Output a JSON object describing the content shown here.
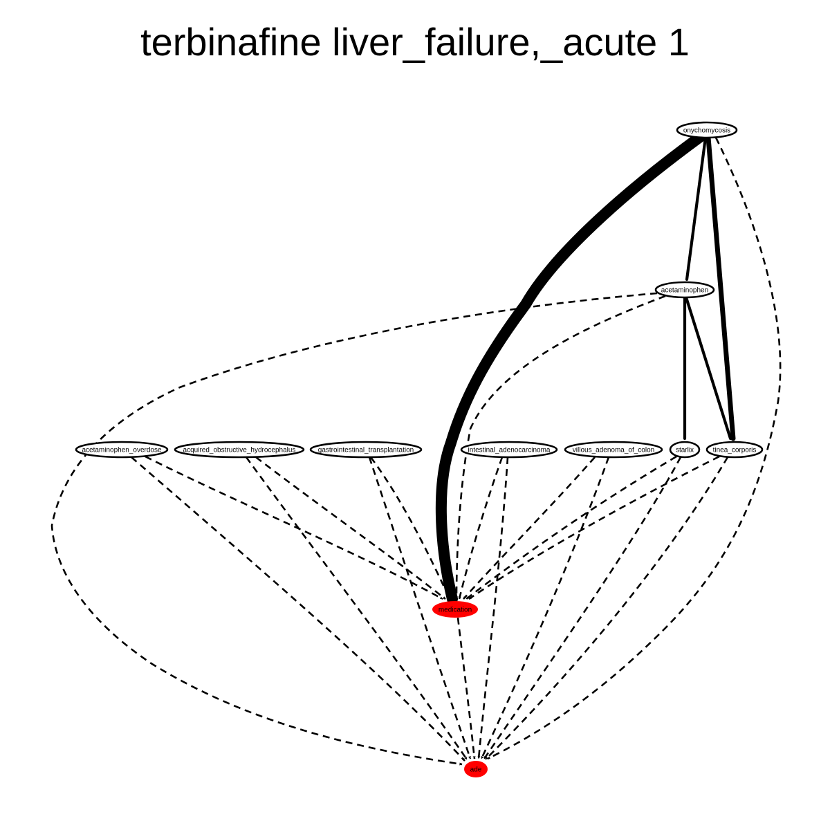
{
  "title": "terbinafine liver_failure,_acute 1",
  "nodes": {
    "onychomycosis": {
      "label": "onychomycosis",
      "fill": "#ffffff"
    },
    "acetaminophen": {
      "label": "acetaminophen",
      "fill": "#ffffff"
    },
    "acetaminophen_overdose": {
      "label": "acetaminophen_overdose",
      "fill": "#ffffff"
    },
    "acquired_obstructive_hydrocephalus": {
      "label": "acquired_obstructive_hydrocephalus",
      "fill": "#ffffff"
    },
    "gastrointestinal_transplantation": {
      "label": "gastrointestinal_transplantation",
      "fill": "#ffffff"
    },
    "intestinal_adenocarcinoma": {
      "label": "intestinal_adenocarcinoma",
      "fill": "#ffffff"
    },
    "villous_adenoma_of_colon": {
      "label": "villous_adenoma_of_colon",
      "fill": "#ffffff"
    },
    "starlix": {
      "label": "starlix",
      "fill": "#ffffff"
    },
    "tinea_corporis": {
      "label": "tinea_corporis",
      "fill": "#ffffff"
    },
    "medication": {
      "label": "medication",
      "fill": "#ff0000"
    },
    "ade": {
      "label": "ade",
      "fill": "#ff0000"
    }
  },
  "edges": [
    {
      "from": "onychomycosis",
      "to": "medication",
      "style": "solid",
      "weight": 5
    },
    {
      "from": "onychomycosis",
      "to": "acetaminophen",
      "style": "solid",
      "weight": 1.3
    },
    {
      "from": "onychomycosis",
      "to": "tinea_corporis",
      "style": "solid",
      "weight": 2.2
    },
    {
      "from": "onychomycosis",
      "to": "ade",
      "style": "dashed",
      "weight": 1
    },
    {
      "from": "acetaminophen",
      "to": "starlix",
      "style": "solid",
      "weight": 1.3
    },
    {
      "from": "acetaminophen",
      "to": "tinea_corporis",
      "style": "solid",
      "weight": 1.3
    },
    {
      "from": "acetaminophen",
      "to": "medication",
      "style": "dashed",
      "weight": 1
    },
    {
      "from": "acetaminophen",
      "to": "ade",
      "style": "dashed",
      "weight": 1
    },
    {
      "from": "acetaminophen_overdose",
      "to": "medication",
      "style": "dashed",
      "weight": 1
    },
    {
      "from": "acetaminophen_overdose",
      "to": "ade",
      "style": "dashed",
      "weight": 1
    },
    {
      "from": "acquired_obstructive_hydrocephalus",
      "to": "medication",
      "style": "dashed",
      "weight": 1
    },
    {
      "from": "acquired_obstructive_hydrocephalus",
      "to": "ade",
      "style": "dashed",
      "weight": 1
    },
    {
      "from": "gastrointestinal_transplantation",
      "to": "medication",
      "style": "dashed",
      "weight": 1
    },
    {
      "from": "gastrointestinal_transplantation",
      "to": "ade",
      "style": "dashed",
      "weight": 1
    },
    {
      "from": "intestinal_adenocarcinoma",
      "to": "medication",
      "style": "dashed",
      "weight": 1
    },
    {
      "from": "intestinal_adenocarcinoma",
      "to": "ade",
      "style": "dashed",
      "weight": 1
    },
    {
      "from": "villous_adenoma_of_colon",
      "to": "medication",
      "style": "dashed",
      "weight": 1
    },
    {
      "from": "villous_adenoma_of_colon",
      "to": "ade",
      "style": "dashed",
      "weight": 1
    },
    {
      "from": "starlix",
      "to": "medication",
      "style": "dashed",
      "weight": 1
    },
    {
      "from": "starlix",
      "to": "ade",
      "style": "dashed",
      "weight": 1
    },
    {
      "from": "tinea_corporis",
      "to": "medication",
      "style": "dashed",
      "weight": 1
    },
    {
      "from": "tinea_corporis",
      "to": "ade",
      "style": "dashed",
      "weight": 1
    },
    {
      "from": "medication",
      "to": "ade",
      "style": "dashed",
      "weight": 1
    }
  ]
}
